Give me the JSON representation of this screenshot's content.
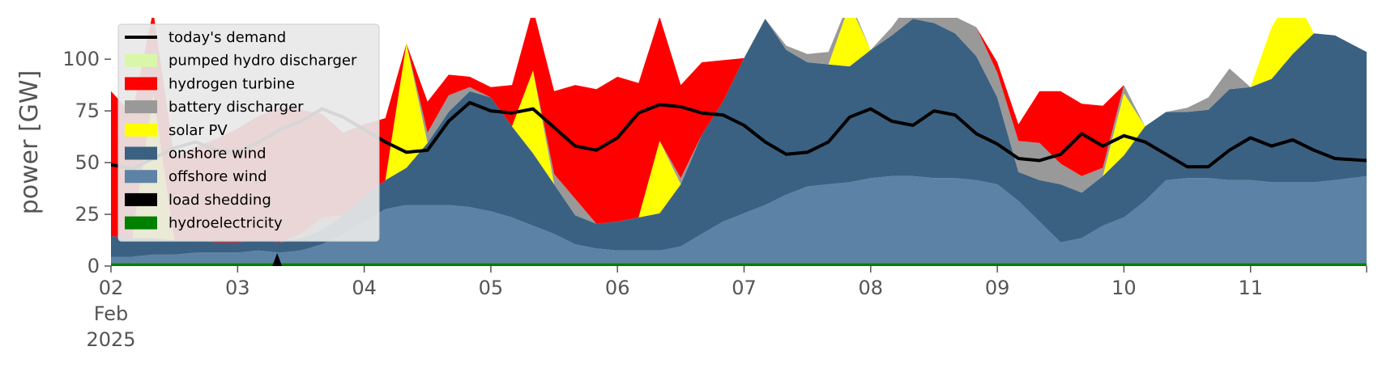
{
  "chart_data": {
    "type": "area",
    "ylabel": "power [GW]",
    "ylim": [
      0,
      120
    ],
    "xlim": [
      "2025-02-02",
      "2025-02-11 22:00"
    ],
    "yticks": [
      0,
      25,
      50,
      75,
      100
    ],
    "xticks": [
      "02\nFeb\n2025",
      "03",
      "04",
      "05",
      "06",
      "07",
      "08",
      "09",
      "10",
      "11"
    ],
    "grid": false,
    "legend_position": "top-left",
    "legend": [
      {
        "label": "today's demand",
        "color": "#000000",
        "kind": "line"
      },
      {
        "label": "pumped hydro discharger",
        "color": "#d9f7a8",
        "kind": "patch"
      },
      {
        "label": "hydrogen turbine",
        "color": "#ff0000",
        "kind": "patch"
      },
      {
        "label": "battery discharger",
        "color": "#999999",
        "kind": "patch"
      },
      {
        "label": "solar PV",
        "color": "#ffff00",
        "kind": "patch"
      },
      {
        "label": "onshore wind",
        "color": "#3b6182",
        "kind": "patch"
      },
      {
        "label": "offshore wind",
        "color": "#5c83a5",
        "kind": "patch"
      },
      {
        "label": "load shedding",
        "color": "#000000",
        "kind": "patch"
      },
      {
        "label": "hydroelectricity",
        "color": "#008000",
        "kind": "patch"
      }
    ],
    "times_hours": [
      0,
      4,
      8,
      12,
      16,
      20,
      24,
      28,
      32,
      36,
      40,
      44,
      48,
      52,
      56,
      60,
      64,
      68,
      72,
      76,
      80,
      84,
      88,
      92,
      96,
      100,
      104,
      108,
      112,
      116,
      120,
      124,
      128,
      132,
      136,
      140,
      144,
      148,
      152,
      156,
      160,
      164,
      168,
      172,
      176,
      180,
      184,
      188,
      192,
      196,
      200,
      204,
      208,
      212,
      216,
      220,
      224,
      228,
      232,
      238
    ],
    "series": [
      {
        "name": "hydroelectricity",
        "values": [
          1.5,
          1.5,
          1.5,
          1.5,
          1.5,
          1.5,
          1.5,
          1.5,
          1.5,
          1.5,
          1.5,
          1.5,
          1.5,
          1.5,
          1.5,
          1.5,
          1.5,
          1.5,
          1.5,
          1.5,
          1.5,
          1.5,
          1.5,
          1.5,
          1.5,
          1.5,
          1.5,
          1.5,
          1.5,
          1.5,
          1.5,
          1.5,
          1.5,
          1.5,
          1.5,
          1.5,
          1.5,
          1.5,
          1.5,
          1.5,
          1.5,
          1.5,
          1.5,
          1.5,
          1.5,
          1.5,
          1.5,
          1.5,
          1.5,
          1.5,
          1.5,
          1.5,
          1.5,
          1.5,
          1.5,
          1.5,
          1.5,
          1.5,
          1.5,
          1.5
        ]
      },
      {
        "name": "load shedding",
        "values": [
          0,
          0,
          0,
          0,
          0,
          0,
          0,
          0,
          0,
          0,
          0,
          0,
          0,
          0,
          0,
          0,
          0,
          0,
          0,
          0,
          0,
          0,
          0,
          0,
          0,
          0,
          0,
          0,
          0,
          0,
          0,
          0,
          0,
          0,
          0,
          0,
          0,
          0,
          0,
          0,
          0,
          0,
          0,
          0,
          0,
          0,
          0,
          0,
          0,
          0,
          0,
          0,
          0,
          0,
          0,
          0,
          0,
          0,
          0,
          0
        ]
      },
      {
        "name": "offshore wind",
        "values": [
          3,
          3,
          4,
          4,
          5,
          5,
          5,
          6,
          5,
          6,
          9,
          14,
          20,
          26,
          28,
          28,
          28,
          27,
          25,
          22,
          18,
          14,
          9,
          7,
          6,
          6,
          6,
          8,
          14,
          20,
          24,
          28,
          33,
          37,
          38,
          39,
          41,
          42,
          42,
          41,
          41,
          40,
          38,
          30,
          20,
          10,
          12,
          18,
          22,
          30,
          40,
          41,
          41,
          40,
          40,
          39,
          39,
          39,
          40,
          42
        ]
      },
      {
        "name": "onshore wind",
        "values": [
          10,
          9,
          8,
          7,
          6,
          5,
          5,
          5,
          5,
          6,
          7,
          9,
          12,
          14,
          18,
          30,
          45,
          56,
          55,
          44,
          35,
          24,
          14,
          12,
          14,
          16,
          18,
          30,
          48,
          58,
          75,
          90,
          70,
          60,
          58,
          56,
          62,
          68,
          76,
          75,
          70,
          60,
          42,
          14,
          20,
          28,
          22,
          24,
          30,
          36,
          33,
          32,
          33,
          44,
          45,
          50,
          62,
          72,
          70,
          60
        ]
      },
      {
        "name": "solar PV",
        "values": [
          0,
          0,
          70,
          0,
          0,
          0,
          0,
          0,
          0,
          0,
          0,
          0,
          0,
          0,
          60,
          0,
          0,
          0,
          0,
          0,
          40,
          0,
          0,
          0,
          0,
          0,
          35,
          0,
          0,
          0,
          0,
          0,
          0,
          0,
          0,
          30,
          0,
          0,
          0,
          0,
          0,
          0,
          0,
          0,
          0,
          0,
          0,
          0,
          30,
          0,
          0,
          0,
          0,
          0,
          0,
          25,
          30,
          0,
          0,
          0
        ]
      },
      {
        "name": "battery discharger",
        "values": [
          0,
          0,
          0,
          0,
          0,
          0,
          0,
          0,
          0,
          2,
          6,
          0,
          0,
          0,
          0,
          5,
          8,
          2,
          0,
          0,
          0,
          5,
          8,
          0,
          0,
          0,
          0,
          3,
          0,
          0,
          0,
          0,
          2,
          4,
          6,
          2,
          0,
          4,
          10,
          6,
          8,
          14,
          12,
          15,
          18,
          10,
          8,
          4,
          4,
          0,
          0,
          2,
          6,
          10,
          0,
          0,
          0,
          0,
          0,
          0
        ]
      },
      {
        "name": "hydrogen turbine",
        "values": [
          70,
          60,
          40,
          40,
          45,
          50,
          55,
          60,
          65,
          60,
          50,
          40,
          35,
          30,
          0,
          15,
          10,
          5,
          5,
          20,
          30,
          40,
          55,
          65,
          70,
          65,
          60,
          45,
          35,
          20,
          0,
          0,
          0,
          0,
          0,
          0,
          0,
          0,
          0,
          0,
          0,
          0,
          5,
          8,
          25,
          35,
          35,
          30,
          0,
          0,
          0,
          0,
          0,
          0,
          0,
          0,
          0,
          0,
          0,
          0
        ]
      },
      {
        "name": "pumped hydro discharger",
        "values": [
          0,
          0,
          0,
          0,
          0,
          0,
          0,
          0,
          0,
          0,
          0,
          0,
          0,
          0,
          0,
          0,
          0,
          0,
          0,
          0,
          0,
          0,
          0,
          0,
          0,
          0,
          0,
          0,
          0,
          0,
          0,
          0,
          0,
          0,
          0,
          0,
          0,
          0,
          0,
          0,
          0,
          0,
          0,
          0,
          0,
          0,
          0,
          0,
          0,
          0,
          0,
          0,
          0,
          0,
          0,
          0,
          0,
          0,
          0,
          0
        ]
      }
    ],
    "demand": {
      "name": "today's demand",
      "values": [
        49,
        47,
        52,
        57,
        60,
        56,
        55,
        60,
        66,
        70,
        76,
        72,
        66,
        60,
        55,
        56,
        70,
        79,
        75,
        74,
        76,
        67,
        58,
        56,
        62,
        74,
        78,
        77,
        74,
        73,
        68,
        60,
        54,
        55,
        60,
        72,
        76,
        70,
        68,
        75,
        73,
        64,
        59,
        52,
        51,
        54,
        64,
        58,
        63,
        60,
        54,
        48,
        48,
        56,
        62,
        58,
        61,
        56,
        52,
        51
      ]
    }
  }
}
